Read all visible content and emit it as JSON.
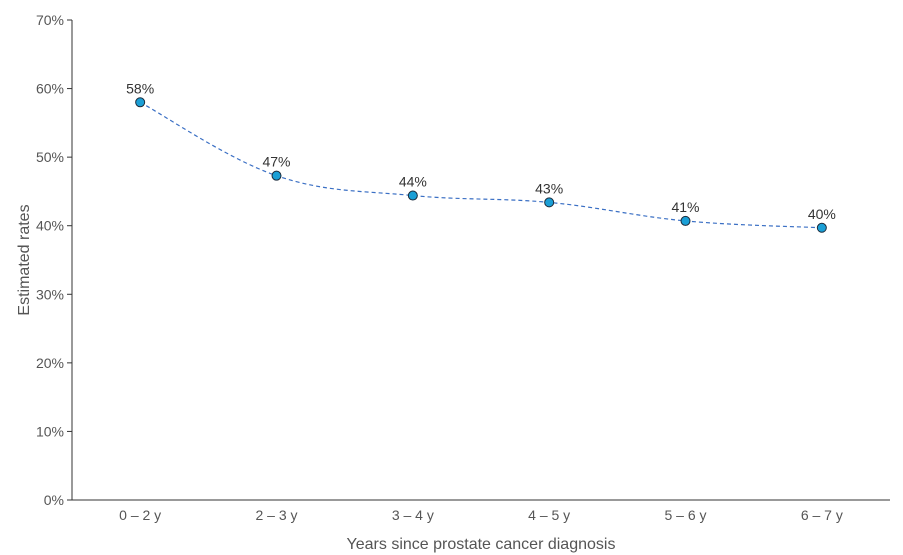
{
  "chart_data": {
    "type": "line",
    "title": "",
    "xlabel": "Years since prostate cancer diagnosis",
    "ylabel": "Estimated rates",
    "categories": [
      "0 – 2 y",
      "2 – 3 y",
      "3 – 4 y",
      "4 – 5 y",
      "5 – 6 y",
      "6 – 7 y"
    ],
    "series": [
      {
        "values": [
          58,
          47.3,
          44.4,
          43.4,
          40.7,
          39.7
        ],
        "labels": [
          "58%",
          "47%",
          "44%",
          "43%",
          "41%",
          "40%"
        ],
        "color": "#1a9fd6",
        "line_color": "#3a6fc4",
        "line_style": "dashed",
        "marker": "circle"
      }
    ],
    "ylim": [
      0,
      70
    ],
    "yticks": [
      0,
      10,
      20,
      30,
      40,
      50,
      60,
      70
    ],
    "ytick_labels": [
      "0%",
      "10%",
      "20%",
      "30%",
      "40%",
      "50%",
      "60%",
      "70%"
    ],
    "grid": false,
    "legend": "none"
  }
}
